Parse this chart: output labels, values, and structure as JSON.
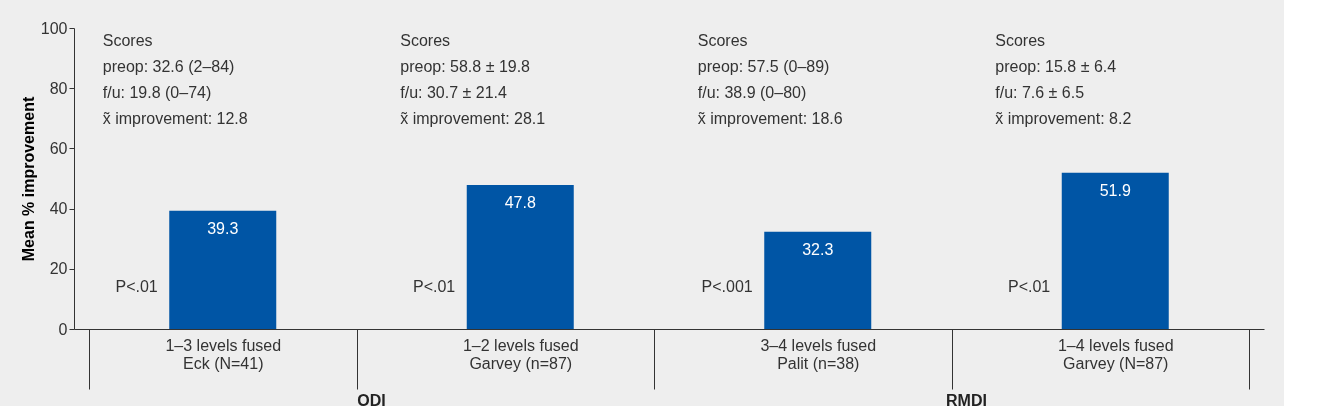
{
  "chart_data": {
    "type": "bar",
    "ylabel": "Mean % improvement",
    "categories": [
      "1–3 levels fused\nEck (N=41)",
      "1–2 levels fused\nGarvey (n=87)",
      "3–4 levels fused\nPalit (n=38)",
      "1–4 levels fused\nGarvey (N=87)"
    ],
    "values": [
      39.3,
      47.8,
      32.3,
      51.9
    ],
    "color": "#0055a5",
    "ylim": [
      0,
      100
    ],
    "yticks": [
      0,
      20,
      40,
      60,
      80,
      100
    ],
    "grid": false,
    "data_labels": true,
    "annotations": [
      "Scores\npreop: 32.6 (2–84)\nf/u: 19.8 (0–74)\nx̃ improvement: 12.8",
      "Scores\npreop: 58.8 ± 19.8\nf/u: 30.7 ± 21.4\nx̃ improvement: 28.1",
      "Scores\npreop: 57.5 (0–89)\nf/u: 38.9 (0–80)\nx̃ improvement: 18.6",
      "Scores\npreop: 15.8 ± 6.4\nf/u: 7.6 ± 6.5\nx̃ improvement: 8.2",
      "P<.01",
      "P<.01",
      "P<.001",
      "P<.01",
      "ODI",
      "RMDI"
    ]
  }
}
